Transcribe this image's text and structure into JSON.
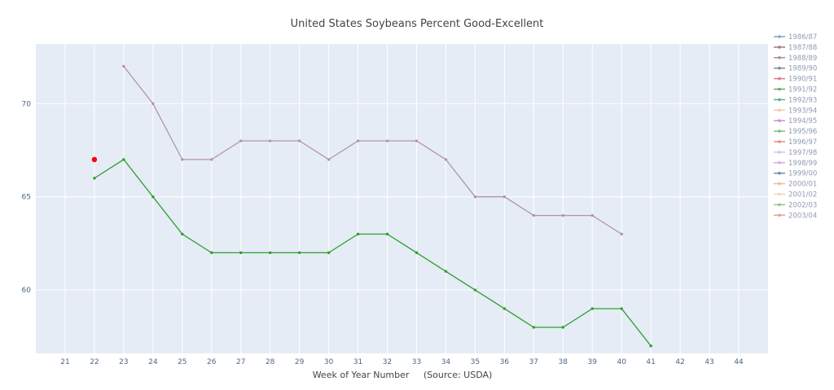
{
  "chart_data": {
    "type": "line",
    "title": "United States Soybeans Percent Good-Excellent",
    "xlabel": "Week of Year Number     (Source: USDA)",
    "ylabel": "",
    "xlim": [
      20,
      45
    ],
    "ylim": [
      56.6,
      73.2
    ],
    "x_ticks": [
      21,
      22,
      23,
      24,
      25,
      26,
      27,
      28,
      29,
      30,
      31,
      32,
      33,
      34,
      35,
      36,
      37,
      38,
      39,
      40,
      41,
      42,
      43,
      44
    ],
    "y_ticks": [
      60,
      65,
      70
    ],
    "grid": true,
    "legend_position": "right",
    "legend": [
      {
        "name": "1986/87",
        "color": "#7aa6c8"
      },
      {
        "name": "1987/88",
        "color": "#9b7d86"
      },
      {
        "name": "1988/89",
        "color": "#a68aa8"
      },
      {
        "name": "1989/90",
        "color": "#8a8a8a"
      },
      {
        "name": "1990/91",
        "color": "#e07a8a"
      },
      {
        "name": "1991/92",
        "color": "#6aa86a"
      },
      {
        "name": "1992/93",
        "color": "#5cae8c"
      },
      {
        "name": "1993/94",
        "color": "#f4c8a8"
      },
      {
        "name": "1994/95",
        "color": "#d68ad6"
      },
      {
        "name": "1995/96",
        "color": "#7abf7a"
      },
      {
        "name": "1996/97",
        "color": "#e58a8a"
      },
      {
        "name": "1997/98",
        "color": "#c8c8e8"
      },
      {
        "name": "1998/99",
        "color": "#e6a0e6"
      },
      {
        "name": "1999/00",
        "color": "#6f8db3"
      },
      {
        "name": "2000/01",
        "color": "#f2b8a0"
      },
      {
        "name": "2001/02",
        "color": "#f5d5b5"
      },
      {
        "name": "2002/03",
        "color": "#9dbf8a"
      },
      {
        "name": "2003/04",
        "color": "#e8a0a0"
      }
    ],
    "series": [
      {
        "color": "#b294a8",
        "x": [
          23,
          24,
          25,
          26,
          27,
          28,
          29,
          30,
          31,
          32,
          33,
          34,
          35,
          36,
          37,
          38,
          39,
          40
        ],
        "y": [
          72,
          70,
          67,
          67,
          68,
          68,
          68,
          67,
          68,
          68,
          68,
          67,
          65,
          65,
          64,
          64,
          64,
          63
        ]
      },
      {
        "color": "#2ca02c",
        "x": [
          22,
          23,
          24,
          25,
          26,
          27,
          28,
          29,
          30,
          31,
          32,
          33,
          34,
          35,
          36,
          37,
          38,
          39,
          40,
          41
        ],
        "y": [
          66,
          67,
          65,
          63,
          62,
          62,
          62,
          62,
          62,
          63,
          63,
          62,
          61,
          60,
          59,
          58,
          58,
          59,
          59,
          57
        ]
      },
      {
        "color": "#ff0000",
        "x": [
          22
        ],
        "y": [
          67
        ]
      }
    ]
  }
}
